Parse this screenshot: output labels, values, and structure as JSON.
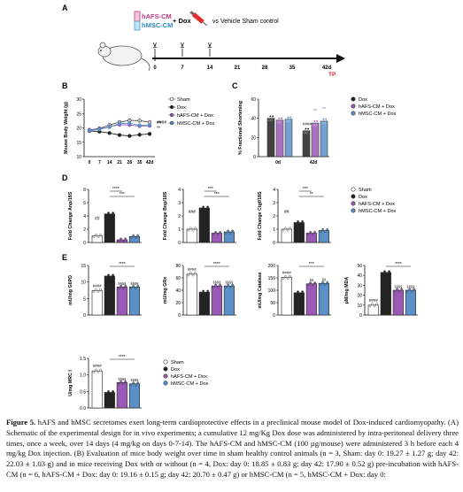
{
  "panel_letters": {
    "a": "A",
    "b": "B",
    "c": "C",
    "d": "D",
    "e": "E"
  },
  "panel_a": {
    "treatments": {
      "hafs": "hAFS-CM",
      "hmsc": "hMSC-CM",
      "plus_dox": "+ Dox",
      "vehicle": "vs Vehicle Sham control"
    },
    "timeline_labels": [
      "0",
      "7",
      "14",
      "21",
      "28",
      "35",
      "42d"
    ],
    "tp_label": "TP"
  },
  "legend": {
    "sham": "Sham",
    "dox": "Dox",
    "hafs": "hAFS-CM + Dox",
    "hmsc": "hMSC-CM + Dox"
  },
  "colors": {
    "sham": "#ffffff",
    "dox": "#222222",
    "hafs": "#9b59b6",
    "hmsc": "#5b8fc7",
    "accent": "#d62728"
  },
  "chart_data": [
    {
      "type": "line",
      "panel": "B",
      "ylabel": "Mouse Body Weight (g)",
      "x": [
        "0",
        "7",
        "14",
        "21",
        "28",
        "35",
        "42d"
      ],
      "ylim": [
        10,
        30
      ],
      "yticks": [
        "10",
        "15",
        "20",
        "25",
        "30"
      ],
      "series": [
        {
          "name": "Sham",
          "values": [
            19.3,
            19.8,
            21.0,
            22.0,
            22.6,
            22.5,
            22.0
          ]
        },
        {
          "name": "Dox",
          "values": [
            18.9,
            18.7,
            18.2,
            17.5,
            17.2,
            17.6,
            17.9
          ]
        },
        {
          "name": "hAFS-CM + Dox",
          "values": [
            19.2,
            19.6,
            20.4,
            21.1,
            21.0,
            20.6,
            20.7
          ]
        },
        {
          "name": "hMSC-CM + Dox",
          "values": [
            19.0,
            19.5,
            20.3,
            21.5,
            21.6,
            20.9,
            21.0
          ]
        }
      ],
      "annotations": [
        "####",
        "***",
        "**"
      ]
    },
    {
      "type": "bar",
      "panel": "C",
      "ylabel": "% Fractional Shortening",
      "categories": [
        "0d",
        "42d"
      ],
      "ylim": [
        0,
        60
      ],
      "yticks": [
        "0",
        "20",
        "40",
        "60"
      ],
      "series": [
        {
          "name": "Dox",
          "values": [
            40,
            27
          ]
        },
        {
          "name": "hAFS-CM + Dox",
          "values": [
            38,
            35
          ]
        },
        {
          "name": "hMSC-CM + Dox",
          "values": [
            39,
            37
          ]
        }
      ],
      "annotations": [
        "####",
        "**",
        "**"
      ]
    },
    {
      "type": "bar",
      "panel": "D",
      "subplots": [
        {
          "ylabel": "Fold Change Anp/18S",
          "ylim": [
            0,
            8
          ],
          "yticks": [
            "0",
            "2",
            "4",
            "6",
            "8"
          ],
          "values": [
            1.0,
            4.3,
            0.4,
            0.9
          ],
          "annotations": [
            "##",
            "****",
            "***"
          ]
        },
        {
          "ylabel": "Fold Change Bnp/18S",
          "ylim": [
            0,
            4
          ],
          "yticks": [
            "0",
            "1",
            "2",
            "3",
            "4"
          ],
          "values": [
            1.0,
            2.6,
            0.7,
            0.8
          ],
          "annotations": [
            "###",
            "***",
            "***"
          ]
        },
        {
          "ylabel": "Fold Change Ctgf/18S",
          "ylim": [
            0,
            4
          ],
          "yticks": [
            "0",
            "1",
            "2",
            "3",
            "4"
          ],
          "values": [
            1.0,
            1.5,
            0.7,
            0.9
          ],
          "annotations": [
            "##",
            "***",
            "**"
          ]
        }
      ],
      "categories": [
        "Sham",
        "Dox",
        "hAFS-CM + Dox",
        "hMSC-CM + Dox"
      ]
    },
    {
      "type": "bar",
      "panel": "E",
      "categories": [
        "Sham",
        "Dox",
        "hAFS-CM + Dox",
        "hMSC-CM + Dox"
      ],
      "subplots": [
        {
          "ylabel": "mU/mg G6PD",
          "ylim": [
            0,
            15
          ],
          "yticks": [
            "0",
            "5",
            "10",
            "15"
          ],
          "values": [
            7.4,
            11.8,
            8.5,
            8.5
          ],
          "annotations": [
            "####",
            "****",
            "§§§§",
            "§§§§"
          ]
        },
        {
          "ylabel": "mU/mg GRx",
          "ylim": [
            0,
            80
          ],
          "yticks": [
            "0",
            "20",
            "40",
            "60",
            "80"
          ],
          "values": [
            66,
            37,
            47,
            47
          ],
          "annotations": [
            "####",
            "****",
            "§§§§",
            "§§§§"
          ]
        },
        {
          "ylabel": "mU/mg Catalase",
          "ylim": [
            0,
            200
          ],
          "yticks": [
            "0",
            "50",
            "100",
            "150",
            "200"
          ],
          "values": [
            152,
            90,
            126,
            128
          ],
          "annotations": [
            "####",
            "***",
            "§§",
            "§§"
          ]
        },
        {
          "ylabel": "µM/mg MDA",
          "ylim": [
            0,
            50
          ],
          "yticks": [
            "0",
            "10",
            "20",
            "30",
            "40",
            "50"
          ],
          "values": [
            10,
            43,
            25,
            25
          ],
          "annotations": [
            "####",
            "****",
            "§§§§",
            "§§§§"
          ]
        },
        {
          "ylabel": "U/mg MRC I",
          "ylim": [
            0,
            1.5
          ],
          "yticks": [
            "0.0",
            "0.5",
            "1.0",
            "1.5"
          ],
          "values": [
            1.12,
            0.47,
            0.77,
            0.73
          ],
          "annotations": [
            "####",
            "****",
            "§§§§",
            "§§§§"
          ]
        }
      ]
    }
  ],
  "caption": {
    "label": "Figure 5.",
    "text": "hAFS and hMSC secretomes exert long-term cardioprotective effects in a preclinical mouse model of Dox-induced cardiomyopathy. (A) Schematic of the experimental design for in vivo experiments; a cumulative 12 mg/Kg Dox dose was administered by intra-peritoneal delivery three times, once a week, over 14 days (4 mg/kg on days 0-7-14). The hAFS-CM and hMSC-CM (100 µg/mouse) were administered 3 h before each 4 mg/kg Dox injection. (B) Evaluation of mice body weight over time in sham healthy control animals (n = 3, Sham: day 0: 19.27 ± 1.27 g; day 42: 22.03 ± 1.03 g) and in mice receiving Dox with or without (n = 4, Dox: day 0: 18.85 ± 0.83 g; day 42: 17.90 ± 0.52 g) pre-incubation with hAFS-CM (n = 6, hAFS-CM + Dox: day 0: 19.16 ± 0.15 g; day 42: 20.70 ± 0.47 g) or hMSC-CM (n = 5, hMSC-CM + Dox: day 0:"
  }
}
